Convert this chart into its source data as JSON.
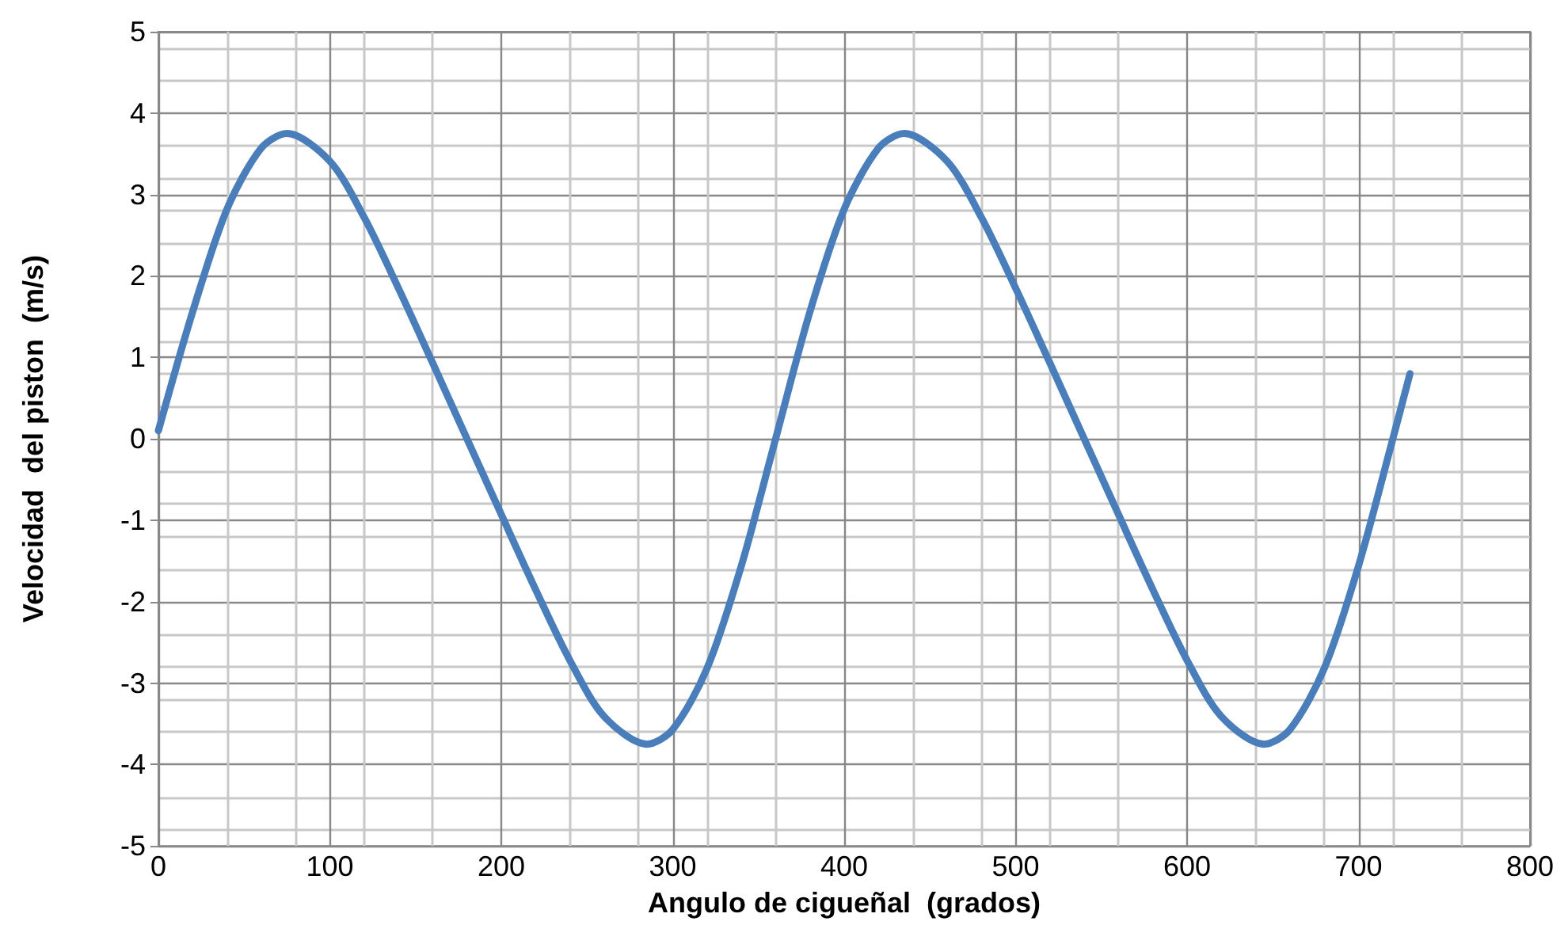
{
  "chart_data": {
    "type": "line",
    "xlabel": "Angulo de cigueñal  (grados)",
    "ylabel": "Velocidad  del piston  (m/s)",
    "x": [
      0,
      20,
      40,
      60,
      75,
      100,
      120,
      140,
      160,
      180,
      200,
      220,
      240,
      260,
      285,
      300,
      320,
      340,
      360,
      380,
      400,
      420,
      435,
      460,
      480,
      500,
      520,
      540,
      560,
      580,
      600,
      620,
      645,
      660,
      680,
      700,
      720,
      730
    ],
    "series": [
      {
        "color": "#4a7ebb",
        "values": [
          0.1,
          1.56,
          2.82,
          3.57,
          3.75,
          3.41,
          2.72,
          1.85,
          0.93,
          0,
          -0.93,
          -1.85,
          -2.72,
          -3.41,
          -3.75,
          -3.57,
          -2.82,
          -1.56,
          0,
          1.56,
          2.82,
          3.57,
          3.75,
          3.41,
          2.72,
          1.85,
          0.93,
          0,
          -0.93,
          -1.85,
          -2.72,
          -3.41,
          -3.75,
          -3.57,
          -2.82,
          -1.56,
          0,
          0.8
        ]
      }
    ],
    "xlim": [
      0,
      800
    ],
    "xticks": [
      0,
      100,
      200,
      300,
      400,
      500,
      600,
      700,
      800
    ],
    "ylim": [
      -5,
      5
    ],
    "yticks": [
      -5,
      -4,
      -3,
      -2,
      -1,
      0,
      1,
      2,
      3,
      4,
      5
    ],
    "grid": true,
    "marker": "none",
    "line_style": "solid"
  }
}
